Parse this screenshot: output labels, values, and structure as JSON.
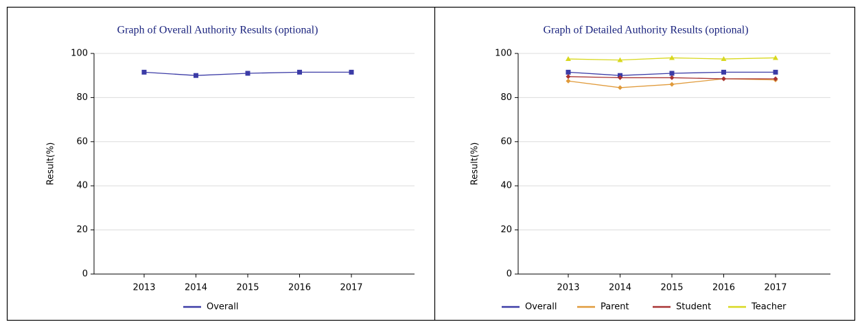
{
  "chart_data": [
    {
      "type": "line",
      "title": "Graph of Overall Authority Results (optional)",
      "y_label": "Result(%)",
      "categories": [
        "2013",
        "2014",
        "2015",
        "2016",
        "2017"
      ],
      "series": [
        {
          "name": "Overall",
          "color": "#3b3ba6",
          "marker": "square",
          "values": [
            91.5,
            90,
            91,
            91.5,
            91.5
          ]
        }
      ],
      "ylim": [
        0,
        100
      ],
      "yticks": [
        0,
        20,
        40,
        60,
        80,
        100
      ],
      "grid": true
    },
    {
      "type": "line",
      "title": "Graph of Detailed Authority Results (optional)",
      "y_label": "Result(%)",
      "categories": [
        "2013",
        "2014",
        "2015",
        "2016",
        "2017"
      ],
      "series": [
        {
          "name": "Overall",
          "color": "#3b3ba6",
          "marker": "square",
          "values": [
            91.5,
            90,
            91,
            91.5,
            91.5
          ]
        },
        {
          "name": "Parent",
          "color": "#e09a3a",
          "marker": "diamond",
          "values": [
            87.5,
            84.5,
            86,
            88.5,
            88
          ]
        },
        {
          "name": "Student",
          "color": "#a83232",
          "marker": "diamond",
          "values": [
            89.5,
            89,
            89,
            88.5,
            88.5
          ]
        },
        {
          "name": "Teacher",
          "color": "#d8d81e",
          "marker": "triangle",
          "values": [
            97.5,
            97,
            98,
            97.5,
            98
          ]
        }
      ],
      "ylim": [
        0,
        100
      ],
      "yticks": [
        0,
        20,
        40,
        60,
        80,
        100
      ],
      "grid": true
    }
  ]
}
